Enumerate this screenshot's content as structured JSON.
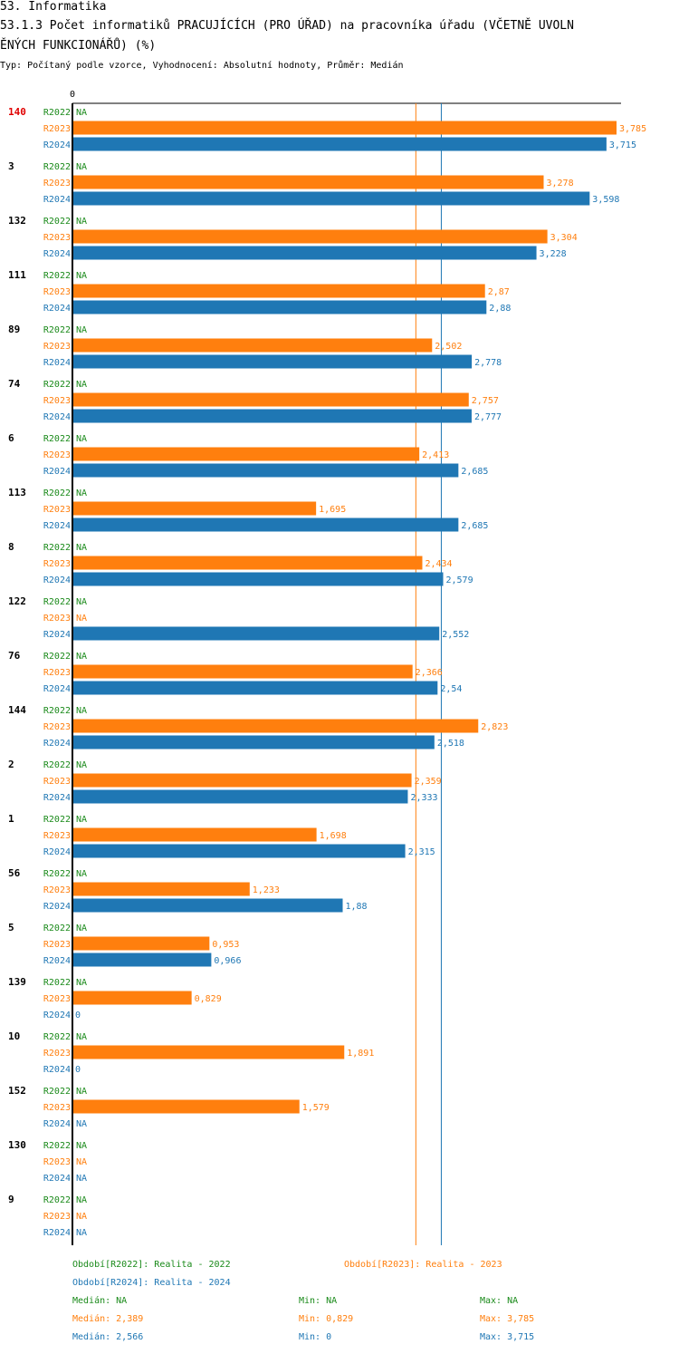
{
  "header": {
    "title1": "53. Informatika",
    "title2": "53.1.3 Počet informatiků PRACUJÍCÍCH (PRO ÚŘAD) na pracovníka úřadu (VČETNĚ UVOLN",
    "title3": "ĚNÝCH FUNKCIONÁŘŮ) (%)",
    "subtitle": "Typ: Počítaný podle vzorce, Vyhodnocení: Absolutní hodnoty, Průměr: Medián"
  },
  "colors": {
    "r2022": "#1a8a1a",
    "r2023": "#ff7f0e",
    "r2024": "#1f77b4",
    "highlight": "#e00000"
  },
  "chart_data": {
    "type": "bar",
    "orientation": "horizontal",
    "axis_zero_label": "0",
    "xlim": [
      0,
      3.785
    ],
    "series_names": [
      "R2022",
      "R2023",
      "R2024"
    ],
    "na_label": "NA",
    "highlight_category": "140",
    "median_lines": {
      "R2023": 2.389,
      "R2024": 2.566
    },
    "categories": [
      "140",
      "3",
      "132",
      "111",
      "89",
      "74",
      "6",
      "113",
      "8",
      "122",
      "76",
      "144",
      "2",
      "1",
      "56",
      "5",
      "139",
      "10",
      "152",
      "130",
      "9"
    ],
    "series": [
      {
        "name": "R2022",
        "values": [
          null,
          null,
          null,
          null,
          null,
          null,
          null,
          null,
          null,
          null,
          null,
          null,
          null,
          null,
          null,
          null,
          null,
          null,
          null,
          null,
          null
        ]
      },
      {
        "name": "R2023",
        "values": [
          3.785,
          3.278,
          3.304,
          2.87,
          2.502,
          2.757,
          2.413,
          1.695,
          2.434,
          null,
          2.366,
          2.823,
          2.359,
          1.698,
          1.233,
          0.953,
          0.829,
          1.891,
          1.579,
          null,
          null
        ]
      },
      {
        "name": "R2024",
        "values": [
          3.715,
          3.598,
          3.228,
          2.88,
          2.778,
          2.777,
          2.685,
          2.685,
          2.579,
          2.552,
          2.54,
          2.518,
          2.333,
          2.315,
          1.88,
          0.966,
          0,
          0,
          null,
          null,
          null
        ]
      }
    ],
    "value_labels": {
      "R2023": [
        "3,785",
        "3,278",
        "3,304",
        "2,87",
        "2,502",
        "2,757",
        "2,413",
        "1,695",
        "2,434",
        "NA",
        "2,366",
        "2,823",
        "2,359",
        "1,698",
        "1,233",
        "0,953",
        "0,829",
        "1,891",
        "1,579",
        "NA",
        "NA"
      ],
      "R2024": [
        "3,715",
        "3,598",
        "3,228",
        "2,88",
        "2,778",
        "2,777",
        "2,685",
        "2,685",
        "2,579",
        "2,552",
        "2,54",
        "2,518",
        "2,333",
        "2,315",
        "1,88",
        "0,966",
        "0",
        "0",
        "NA",
        "NA",
        "NA"
      ]
    }
  },
  "legend": {
    "r2022_label": "Období[R2022]: Realita - 2022",
    "r2023_label": "Období[R2023]: Realita - 2023",
    "r2024_label": "Období[R2024]: Realita - 2024",
    "stats": {
      "r2022": {
        "median": "Medián: NA",
        "min": "Min: NA",
        "max": "Max: NA"
      },
      "r2023": {
        "median": "Medián: 2,389",
        "min": "Min: 0,829",
        "max": "Max: 3,785"
      },
      "r2024": {
        "median": "Medián: 2,566",
        "min": "Min: 0",
        "max": "Max: 3,715"
      }
    }
  }
}
